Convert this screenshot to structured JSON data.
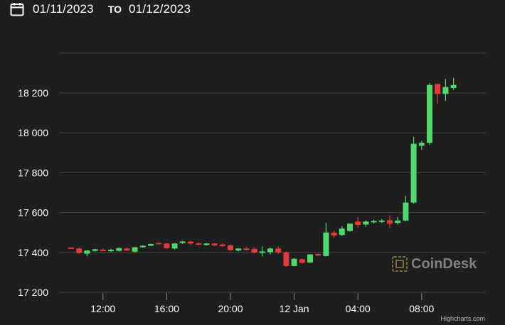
{
  "date_range": {
    "from": "01/11/2023",
    "separator": "TO",
    "to": "01/12/2023"
  },
  "icons": {
    "calendar": "calendar-icon",
    "watermark_logo": "coindesk-logo-icon"
  },
  "watermark": "CoinDesk",
  "credit": "Highcharts.com",
  "colors": {
    "background": "#1e1e1e",
    "up": "#4fd86b",
    "down": "#e63a3a",
    "grid": "#444444",
    "text": "#ffffff"
  },
  "chart_data": {
    "type": "candlestick",
    "title": "",
    "xlabel": "",
    "ylabel": "",
    "ylim": [
      17180,
      18280
    ],
    "grid": true,
    "legend": "none",
    "x_ticks": [
      "12:00",
      "16:00",
      "20:00",
      "12 Jan",
      "04:00",
      "08:00"
    ],
    "x_tick_positions": [
      2,
      6,
      10,
      14,
      18,
      22
    ],
    "y_ticks": [
      "17 200",
      "17 400",
      "17 600",
      "17 800",
      "18 000",
      "18 200"
    ],
    "y_tick_values": [
      17200,
      17400,
      17600,
      17800,
      18000,
      18200
    ],
    "candles": [
      {
        "t": 0,
        "o": 17425,
        "h": 17425,
        "l": 17418,
        "c": 17421
      },
      {
        "t": 0.5,
        "o": 17420,
        "h": 17424,
        "l": 17393,
        "c": 17398
      },
      {
        "t": 1,
        "o": 17394,
        "h": 17412,
        "l": 17382,
        "c": 17410
      },
      {
        "t": 1.5,
        "o": 17408,
        "h": 17418,
        "l": 17405,
        "c": 17416
      },
      {
        "t": 2,
        "o": 17414,
        "h": 17420,
        "l": 17410,
        "c": 17413
      },
      {
        "t": 2.5,
        "o": 17410,
        "h": 17418,
        "l": 17402,
        "c": 17414
      },
      {
        "t": 3,
        "o": 17408,
        "h": 17426,
        "l": 17405,
        "c": 17422
      },
      {
        "t": 3.5,
        "o": 17420,
        "h": 17425,
        "l": 17408,
        "c": 17410
      },
      {
        "t": 4,
        "o": 17404,
        "h": 17428,
        "l": 17400,
        "c": 17426
      },
      {
        "t": 4.5,
        "o": 17426,
        "h": 17436,
        "l": 17424,
        "c": 17434
      },
      {
        "t": 5,
        "o": 17434,
        "h": 17444,
        "l": 17432,
        "c": 17442
      },
      {
        "t": 5.5,
        "o": 17448,
        "h": 17452,
        "l": 17440,
        "c": 17442
      },
      {
        "t": 6,
        "o": 17445,
        "h": 17448,
        "l": 17418,
        "c": 17422
      },
      {
        "t": 6.5,
        "o": 17420,
        "h": 17448,
        "l": 17415,
        "c": 17445
      },
      {
        "t": 7,
        "o": 17448,
        "h": 17458,
        "l": 17442,
        "c": 17455
      },
      {
        "t": 7.5,
        "o": 17455,
        "h": 17458,
        "l": 17440,
        "c": 17445
      },
      {
        "t": 8,
        "o": 17446,
        "h": 17450,
        "l": 17436,
        "c": 17440
      },
      {
        "t": 8.5,
        "o": 17442,
        "h": 17448,
        "l": 17434,
        "c": 17445
      },
      {
        "t": 9,
        "o": 17445,
        "h": 17448,
        "l": 17430,
        "c": 17436
      },
      {
        "t": 9.5,
        "o": 17440,
        "h": 17444,
        "l": 17428,
        "c": 17432
      },
      {
        "t": 10,
        "o": 17436,
        "h": 17440,
        "l": 17408,
        "c": 17412
      },
      {
        "t": 10.5,
        "o": 17410,
        "h": 17422,
        "l": 17405,
        "c": 17420
      },
      {
        "t": 11,
        "o": 17420,
        "h": 17428,
        "l": 17410,
        "c": 17416
      },
      {
        "t": 11.5,
        "o": 17418,
        "h": 17426,
        "l": 17395,
        "c": 17400
      },
      {
        "t": 12,
        "o": 17400,
        "h": 17430,
        "l": 17380,
        "c": 17405
      },
      {
        "t": 12.5,
        "o": 17402,
        "h": 17425,
        "l": 17390,
        "c": 17420
      },
      {
        "t": 13,
        "o": 17420,
        "h": 17430,
        "l": 17393,
        "c": 17400
      },
      {
        "t": 13.5,
        "o": 17400,
        "h": 17405,
        "l": 17328,
        "c": 17332
      },
      {
        "t": 14,
        "o": 17332,
        "h": 17372,
        "l": 17330,
        "c": 17368
      },
      {
        "t": 14.5,
        "o": 17366,
        "h": 17370,
        "l": 17345,
        "c": 17348
      },
      {
        "t": 15,
        "o": 17350,
        "h": 17392,
        "l": 17348,
        "c": 17390
      },
      {
        "t": 15.5,
        "o": 17392,
        "h": 17395,
        "l": 17382,
        "c": 17388
      },
      {
        "t": 16,
        "o": 17382,
        "h": 17548,
        "l": 17380,
        "c": 17500
      },
      {
        "t": 16.5,
        "o": 17500,
        "h": 17508,
        "l": 17475,
        "c": 17485
      },
      {
        "t": 17,
        "o": 17488,
        "h": 17532,
        "l": 17482,
        "c": 17520
      },
      {
        "t": 17.5,
        "o": 17508,
        "h": 17545,
        "l": 17505,
        "c": 17545
      },
      {
        "t": 18,
        "o": 17555,
        "h": 17578,
        "l": 17525,
        "c": 17538
      },
      {
        "t": 18.5,
        "o": 17540,
        "h": 17560,
        "l": 17528,
        "c": 17555
      },
      {
        "t": 19,
        "o": 17555,
        "h": 17565,
        "l": 17545,
        "c": 17558
      },
      {
        "t": 19.5,
        "o": 17555,
        "h": 17568,
        "l": 17548,
        "c": 17560
      },
      {
        "t": 20,
        "o": 17562,
        "h": 17585,
        "l": 17525,
        "c": 17545
      },
      {
        "t": 20.5,
        "o": 17548,
        "h": 17578,
        "l": 17540,
        "c": 17560
      },
      {
        "t": 21,
        "o": 17560,
        "h": 17685,
        "l": 17555,
        "c": 17650
      },
      {
        "t": 21.5,
        "o": 17650,
        "h": 17980,
        "l": 17645,
        "c": 17945
      },
      {
        "t": 22,
        "o": 17935,
        "h": 17960,
        "l": 17915,
        "c": 17950
      },
      {
        "t": 22.5,
        "o": 17950,
        "h": 18250,
        "l": 17940,
        "c": 18240
      },
      {
        "t": 23,
        "o": 18245,
        "h": 18248,
        "l": 18145,
        "c": 18195
      },
      {
        "t": 23.5,
        "o": 18195,
        "h": 18270,
        "l": 18160,
        "c": 18230
      },
      {
        "t": 24,
        "o": 18225,
        "h": 18275,
        "l": 18215,
        "c": 18240
      }
    ]
  }
}
